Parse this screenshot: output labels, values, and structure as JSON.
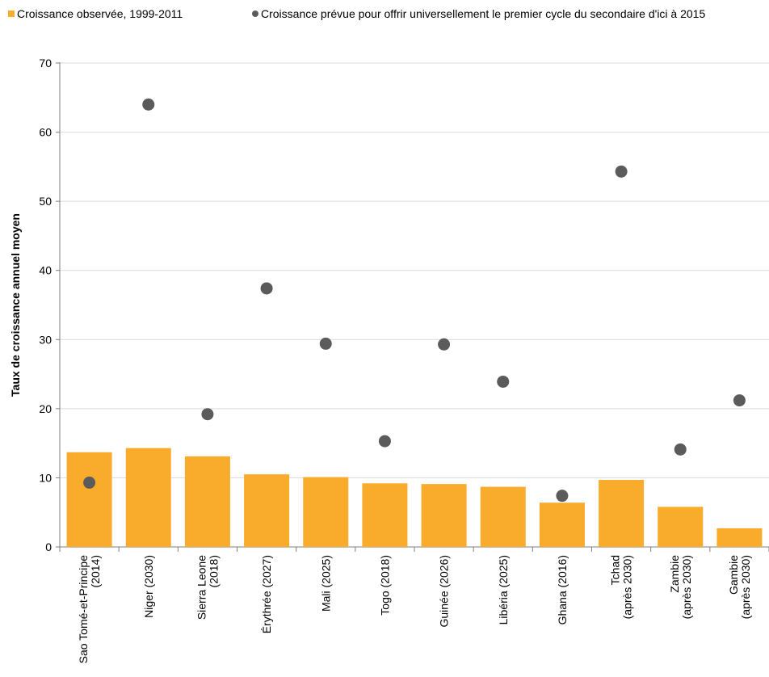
{
  "chart_data": {
    "type": "bar",
    "title": "",
    "xlabel": "",
    "ylabel": "Taux de croissance annuel moyen",
    "ylim": [
      0,
      70
    ],
    "yticks": [
      0,
      10,
      20,
      30,
      40,
      50,
      60,
      70
    ],
    "grid": true,
    "legend_position": "top",
    "categories": [
      [
        "Sao Tomé-et-Principe",
        "(2014)"
      ],
      [
        "Niger (2030)"
      ],
      [
        "Sierra Leone",
        "(2018)"
      ],
      [
        "Érythrée (2027)"
      ],
      [
        "Mali (2025)"
      ],
      [
        "Togo (2018)"
      ],
      [
        "Guinée (2026)"
      ],
      [
        "Libéria (2025)"
      ],
      [
        "Ghana (2016)"
      ],
      [
        "Tchad",
        "(après 2030)"
      ],
      [
        "Zambie",
        "(après 2030)"
      ],
      [
        "Gambie",
        "(après 2030)"
      ]
    ],
    "series": [
      {
        "name": "Croissance observée, 1999-2011",
        "kind": "bar",
        "color": "#F9AB2B",
        "values": [
          13.7,
          14.3,
          13.1,
          10.5,
          10.1,
          9.2,
          9.1,
          8.7,
          6.4,
          9.7,
          5.8,
          2.7
        ]
      },
      {
        "name": "Croissance prévue pour offrir universellement le premier cycle du secondaire d'ici à 2015",
        "kind": "scatter",
        "color": "#5B5B5B",
        "values": [
          9.3,
          64.0,
          19.2,
          37.4,
          29.4,
          15.3,
          29.3,
          23.9,
          7.4,
          54.3,
          14.1,
          21.2
        ]
      }
    ]
  }
}
